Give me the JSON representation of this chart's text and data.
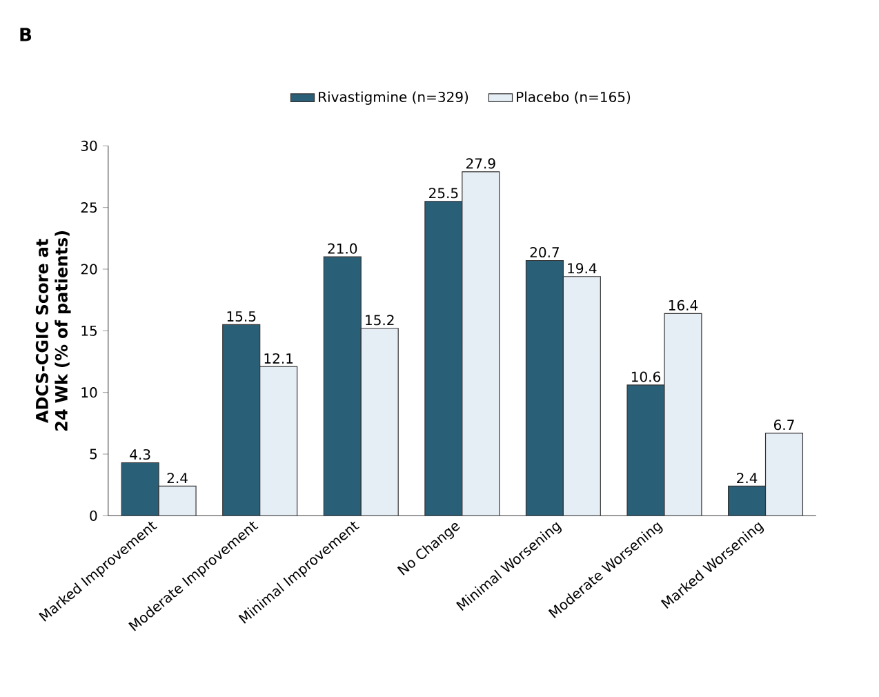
{
  "chart_data": {
    "type": "bar",
    "title": "B",
    "ylabel": "ADCS-CGIC Score at 24 Wk (% of patients)",
    "categories": [
      "Marked Improvement",
      "Moderate Improvement",
      "Minimal Improvement",
      "No Change",
      "Minimal Worsening",
      "Moderate Worsening",
      "Marked Worsening"
    ],
    "series": [
      {
        "name": "Rivastigmine (n=329)",
        "color": "#2a5f78",
        "values": [
          4.3,
          15.5,
          21.0,
          25.5,
          20.7,
          10.6,
          2.4
        ],
        "value_labels": [
          "4.3",
          "15.5",
          "21.0",
          "25.5",
          "20.7",
          "10.6",
          "2.4"
        ]
      },
      {
        "name": "Placebo (n=165)",
        "color": "#e6eef5",
        "values": [
          2.4,
          12.1,
          15.2,
          27.9,
          19.4,
          16.4,
          6.7
        ],
        "value_labels": [
          "2.4",
          "12.1",
          "15.2",
          "27.9",
          "19.4",
          "16.4",
          "6.7"
        ]
      }
    ],
    "ylim": [
      0,
      30
    ],
    "yticks": [
      0,
      5,
      10,
      15,
      20,
      25,
      30
    ],
    "grid": false,
    "legend": "top"
  }
}
